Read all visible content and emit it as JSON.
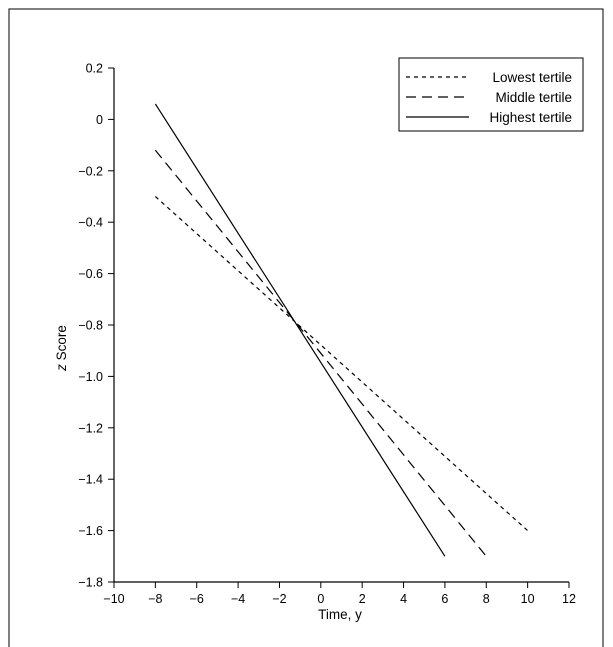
{
  "chart_data": {
    "type": "line",
    "title": "",
    "xlabel": "Time, y",
    "ylabel_italic": "z",
    "ylabel_rest": " Score",
    "xlim": [
      -10,
      12
    ],
    "ylim": [
      -1.8,
      0.2
    ],
    "x_ticks": [
      -10,
      -8,
      -6,
      -4,
      -2,
      0,
      2,
      4,
      6,
      8,
      10,
      12
    ],
    "x_tick_labels": [
      "−10",
      "−8",
      "−6",
      "−4",
      "−2",
      "0",
      "2",
      "4",
      "6",
      "8",
      "10",
      "12"
    ],
    "y_ticks": [
      0.2,
      0,
      -0.2,
      -0.4,
      -0.6,
      -0.8,
      -1.0,
      -1.2,
      -1.4,
      -1.6,
      -1.8
    ],
    "y_tick_labels": [
      "0.2",
      "0",
      "−0.2",
      "−0.4",
      "−0.6",
      "−0.8",
      "−1.0",
      "−1.2",
      "−1.4",
      "−1.6",
      "−1.8"
    ],
    "grid": false,
    "legend_position": "top-right",
    "series": [
      {
        "name": "Lowest tertile",
        "style": "dotted",
        "x": [
          -8,
          10
        ],
        "y": [
          -0.3,
          -1.6
        ]
      },
      {
        "name": "Middle tertile",
        "style": "dashed",
        "x": [
          -8,
          8
        ],
        "y": [
          -0.12,
          -1.7
        ]
      },
      {
        "name": "Highest tertile",
        "style": "solid",
        "x": [
          -8,
          6
        ],
        "y": [
          0.06,
          -1.7
        ]
      }
    ]
  }
}
